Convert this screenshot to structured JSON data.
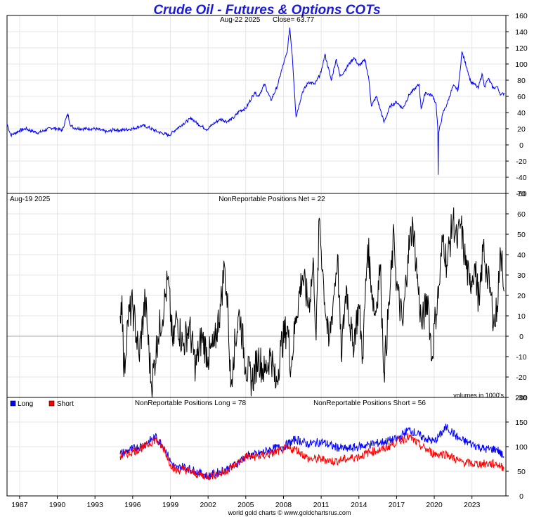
{
  "title": "Crude Oil - Futures & Options COTs",
  "footer": "world gold charts © www.goldchartsrus.com",
  "colors": {
    "title": "#1a1adb",
    "price": "#0000ff",
    "net": "#000000",
    "long": "#0000ff",
    "short": "#ff0000",
    "grid": "#e6e6e6"
  },
  "panels": {
    "price": {
      "date_label": "Aug-22  2025",
      "close_label": "Close= 63.77"
    },
    "net": {
      "date_label": "Aug-19  2025",
      "label": "NonReportable Positions Net = 22",
      "note": "volumes in 1000's"
    },
    "ls": {
      "legend_long": "Long",
      "legend_short": "Short",
      "label_long": "NonReportable Positions Long = 78",
      "label_short": "NonReportable Positions Short = 56"
    }
  },
  "chart_data": [
    {
      "type": "line",
      "panel": "price",
      "ylim": [
        -60,
        160
      ],
      "yticks": [
        -60,
        -40,
        -20,
        0,
        20,
        40,
        60,
        80,
        100,
        120,
        140,
        160
      ],
      "x_ticks": [
        1987,
        1990,
        1993,
        1996,
        1999,
        2002,
        2005,
        2008,
        2011,
        2014,
        2017,
        2020,
        2023
      ],
      "xlim": [
        1986.0,
        2025.7
      ],
      "series": [
        {
          "name": "Close",
          "points": [
            [
              1986.0,
              26
            ],
            [
              1986.3,
              12
            ],
            [
              1986.6,
              14
            ],
            [
              1987.0,
              18
            ],
            [
              1987.5,
              20
            ],
            [
              1988.0,
              17
            ],
            [
              1988.5,
              15
            ],
            [
              1989.0,
              18
            ],
            [
              1989.5,
              21
            ],
            [
              1990.0,
              20
            ],
            [
              1990.4,
              18
            ],
            [
              1990.7,
              33
            ],
            [
              1990.85,
              38
            ],
            [
              1991.0,
              26
            ],
            [
              1991.3,
              21
            ],
            [
              1992.0,
              20
            ],
            [
              1993.0,
              20
            ],
            [
              1994.0,
              16
            ],
            [
              1994.5,
              19
            ],
            [
              1995.0,
              18
            ],
            [
              1996.0,
              20
            ],
            [
              1996.8,
              24
            ],
            [
              1997.2,
              22
            ],
            [
              1998.0,
              16
            ],
            [
              1998.9,
              12
            ],
            [
              1999.5,
              20
            ],
            [
              2000.0,
              26
            ],
            [
              2000.7,
              33
            ],
            [
              2001.0,
              28
            ],
            [
              2001.9,
              19
            ],
            [
              2002.5,
              27
            ],
            [
              2003.0,
              32
            ],
            [
              2003.5,
              29
            ],
            [
              2004.0,
              33
            ],
            [
              2004.5,
              42
            ],
            [
              2005.0,
              45
            ],
            [
              2005.7,
              65
            ],
            [
              2006.0,
              60
            ],
            [
              2006.5,
              75
            ],
            [
              2007.0,
              55
            ],
            [
              2007.5,
              72
            ],
            [
              2007.9,
              95
            ],
            [
              2008.3,
              115
            ],
            [
              2008.5,
              145
            ],
            [
              2008.7,
              110
            ],
            [
              2008.9,
              60
            ],
            [
              2009.0,
              35
            ],
            [
              2009.5,
              65
            ],
            [
              2010.0,
              78
            ],
            [
              2010.5,
              75
            ],
            [
              2011.0,
              90
            ],
            [
              2011.3,
              112
            ],
            [
              2011.8,
              80
            ],
            [
              2012.2,
              106
            ],
            [
              2012.5,
              85
            ],
            [
              2012.8,
              90
            ],
            [
              2013.0,
              95
            ],
            [
              2013.6,
              108
            ],
            [
              2014.0,
              98
            ],
            [
              2014.5,
              105
            ],
            [
              2014.8,
              80
            ],
            [
              2015.0,
              48
            ],
            [
              2015.4,
              60
            ],
            [
              2015.7,
              44
            ],
            [
              2016.0,
              28
            ],
            [
              2016.5,
              48
            ],
            [
              2017.0,
              53
            ],
            [
              2017.5,
              45
            ],
            [
              2018.0,
              62
            ],
            [
              2018.8,
              75
            ],
            [
              2018.95,
              45
            ],
            [
              2019.3,
              65
            ],
            [
              2019.9,
              60
            ],
            [
              2020.15,
              50
            ],
            [
              2020.28,
              20
            ],
            [
              2020.31,
              -37
            ],
            [
              2020.35,
              15
            ],
            [
              2020.7,
              40
            ],
            [
              2021.0,
              50
            ],
            [
              2021.5,
              73
            ],
            [
              2021.9,
              68
            ],
            [
              2022.2,
              115
            ],
            [
              2022.4,
              105
            ],
            [
              2022.6,
              95
            ],
            [
              2022.9,
              78
            ],
            [
              2023.2,
              75
            ],
            [
              2023.5,
              70
            ],
            [
              2023.8,
              88
            ],
            [
              2024.0,
              72
            ],
            [
              2024.3,
              82
            ],
            [
              2024.7,
              70
            ],
            [
              2025.0,
              72
            ],
            [
              2025.3,
              62
            ],
            [
              2025.6,
              64
            ]
          ]
        }
      ]
    },
    {
      "type": "line",
      "panel": "net",
      "ylim": [
        -30,
        70
      ],
      "yticks": [
        -30,
        -20,
        -10,
        0,
        10,
        20,
        30,
        40,
        50,
        60,
        70
      ],
      "series": [
        {
          "name": "NonReportable Positions Net",
          "points": [
            [
              1995.0,
              10
            ],
            [
              1995.15,
              20
            ],
            [
              1995.3,
              -20
            ],
            [
              1995.6,
              8
            ],
            [
              1996.0,
              15
            ],
            [
              1996.5,
              -10
            ],
            [
              1997.0,
              18
            ],
            [
              1997.5,
              -25
            ],
            [
              1998.0,
              0
            ],
            [
              1998.5,
              15
            ],
            [
              1998.8,
              28
            ],
            [
              1999.2,
              -5
            ],
            [
              1999.5,
              10
            ],
            [
              2000.0,
              -5
            ],
            [
              2000.5,
              5
            ],
            [
              2001.0,
              -15
            ],
            [
              2001.5,
              0
            ],
            [
              2002.0,
              -10
            ],
            [
              2002.5,
              -5
            ],
            [
              2003.0,
              15
            ],
            [
              2003.3,
              35
            ],
            [
              2003.6,
              10
            ],
            [
              2003.8,
              -25
            ],
            [
              2004.0,
              -10
            ],
            [
              2004.5,
              12
            ],
            [
              2005.0,
              -15
            ],
            [
              2005.5,
              -22
            ],
            [
              2006.0,
              -10
            ],
            [
              2006.5,
              -18
            ],
            [
              2007.0,
              -8
            ],
            [
              2007.4,
              -25
            ],
            [
              2007.8,
              -5
            ],
            [
              2008.3,
              5
            ],
            [
              2008.6,
              -15
            ],
            [
              2009.0,
              10
            ],
            [
              2009.5,
              30
            ],
            [
              2010.0,
              15
            ],
            [
              2010.4,
              35
            ],
            [
              2010.6,
              -2
            ],
            [
              2010.85,
              58
            ],
            [
              2011.2,
              25
            ],
            [
              2011.6,
              -5
            ],
            [
              2012.0,
              20
            ],
            [
              2012.3,
              40
            ],
            [
              2012.6,
              -10
            ],
            [
              2013.0,
              25
            ],
            [
              2013.5,
              -5
            ],
            [
              2014.0,
              15
            ],
            [
              2014.3,
              -10
            ],
            [
              2014.7,
              45
            ],
            [
              2015.0,
              25
            ],
            [
              2015.3,
              10
            ],
            [
              2015.7,
              35
            ],
            [
              2016.0,
              -18
            ],
            [
              2016.4,
              15
            ],
            [
              2016.8,
              50
            ],
            [
              2017.0,
              25
            ],
            [
              2017.5,
              5
            ],
            [
              2017.9,
              40
            ],
            [
              2018.3,
              55
            ],
            [
              2018.7,
              25
            ],
            [
              2019.0,
              5
            ],
            [
              2019.5,
              20
            ],
            [
              2019.8,
              -12
            ],
            [
              2020.1,
              10
            ],
            [
              2020.4,
              25
            ],
            [
              2020.7,
              50
            ],
            [
              2021.0,
              35
            ],
            [
              2021.5,
              58
            ],
            [
              2021.8,
              45
            ],
            [
              2022.1,
              55
            ],
            [
              2022.4,
              40
            ],
            [
              2022.8,
              25
            ],
            [
              2023.2,
              35
            ],
            [
              2023.6,
              15
            ],
            [
              2023.9,
              45
            ],
            [
              2024.2,
              30
            ],
            [
              2024.5,
              20
            ],
            [
              2024.8,
              5
            ],
            [
              2025.0,
              15
            ],
            [
              2025.2,
              35
            ],
            [
              2025.4,
              42
            ],
            [
              2025.55,
              22
            ]
          ]
        }
      ]
    },
    {
      "type": "line",
      "panel": "ls",
      "ylim": [
        0,
        200
      ],
      "yticks": [
        0,
        50,
        100,
        150,
        200
      ],
      "series": [
        {
          "name": "Long",
          "points": [
            [
              1995.0,
              85
            ],
            [
              1996.0,
              95
            ],
            [
              1997.0,
              105
            ],
            [
              1997.8,
              120
            ],
            [
              1998.5,
              100
            ],
            [
              1999.0,
              70
            ],
            [
              1999.5,
              55
            ],
            [
              2000.0,
              60
            ],
            [
              2001.0,
              50
            ],
            [
              2002.0,
              40
            ],
            [
              2003.0,
              50
            ],
            [
              2004.0,
              60
            ],
            [
              2005.0,
              80
            ],
            [
              2006.0,
              85
            ],
            [
              2007.0,
              95
            ],
            [
              2008.0,
              100
            ],
            [
              2009.0,
              115
            ],
            [
              2010.0,
              105
            ],
            [
              2011.0,
              110
            ],
            [
              2012.0,
              100
            ],
            [
              2013.0,
              95
            ],
            [
              2014.0,
              100
            ],
            [
              2015.0,
              105
            ],
            [
              2016.0,
              110
            ],
            [
              2017.0,
              115
            ],
            [
              2018.0,
              135
            ],
            [
              2019.0,
              120
            ],
            [
              2020.0,
              110
            ],
            [
              2021.0,
              140
            ],
            [
              2022.0,
              115
            ],
            [
              2023.0,
              105
            ],
            [
              2024.0,
              95
            ],
            [
              2025.0,
              95
            ],
            [
              2025.55,
              78
            ]
          ]
        },
        {
          "name": "Short",
          "points": [
            [
              1995.0,
              80
            ],
            [
              1996.0,
              90
            ],
            [
              1997.0,
              100
            ],
            [
              1997.8,
              115
            ],
            [
              1998.5,
              95
            ],
            [
              1999.0,
              65
            ],
            [
              1999.5,
              50
            ],
            [
              2000.0,
              55
            ],
            [
              2001.0,
              45
            ],
            [
              2002.0,
              40
            ],
            [
              2003.0,
              45
            ],
            [
              2004.0,
              60
            ],
            [
              2005.0,
              80
            ],
            [
              2006.0,
              80
            ],
            [
              2007.0,
              85
            ],
            [
              2008.0,
              95
            ],
            [
              2009.0,
              95
            ],
            [
              2010.0,
              75
            ],
            [
              2011.0,
              75
            ],
            [
              2012.0,
              70
            ],
            [
              2013.0,
              75
            ],
            [
              2014.0,
              80
            ],
            [
              2015.0,
              90
            ],
            [
              2016.0,
              95
            ],
            [
              2017.0,
              110
            ],
            [
              2018.0,
              120
            ],
            [
              2019.0,
              100
            ],
            [
              2020.0,
              85
            ],
            [
              2021.0,
              85
            ],
            [
              2022.0,
              70
            ],
            [
              2023.0,
              65
            ],
            [
              2024.0,
              65
            ],
            [
              2025.0,
              65
            ],
            [
              2025.55,
              56
            ]
          ]
        }
      ]
    }
  ]
}
